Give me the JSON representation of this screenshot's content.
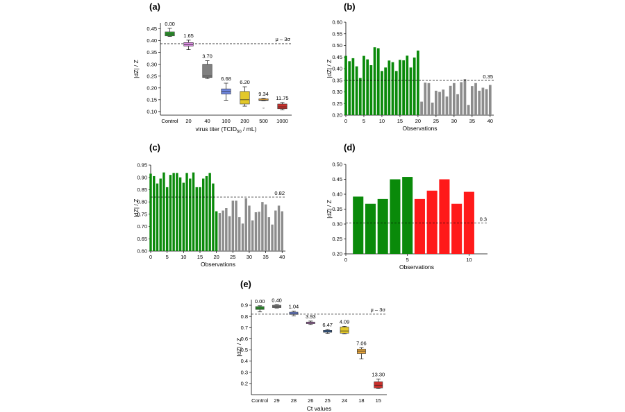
{
  "figure": {
    "panels": [
      "a",
      "b",
      "c",
      "d",
      "e"
    ]
  },
  "chart_data": [
    {
      "id": "a",
      "panel_label": "(a)",
      "type": "box",
      "xlabel": "virus titer (TCID50 / mL)",
      "xlabel_main": "virus titer (TCID",
      "xlabel_sub": "50",
      "xlabel_end": " / mL)",
      "ylabel": "|dZ| / Z",
      "ylim": [
        0.085,
        0.475
      ],
      "yticks": [
        "0.10",
        "0.15",
        "0.20",
        "0.25",
        "0.30",
        "0.35",
        "0.40",
        "0.45"
      ],
      "threshold": {
        "value": 0.387,
        "label": "μ – 3σ"
      },
      "categories": [
        "Control",
        "20",
        "40",
        "100",
        "200",
        "500",
        "1000"
      ],
      "labels": [
        "0.00",
        "1.65",
        "3.70",
        "6.68",
        "6.20",
        "9.34",
        "11.75"
      ],
      "colors": [
        "#2ca02c",
        "#d98ae0",
        "#808080",
        "#6f86e0",
        "#e3c829",
        "#e8a53b",
        "#c9302c"
      ],
      "boxes": [
        {
          "min": 0.418,
          "q1": 0.42,
          "med": 0.428,
          "q3": 0.437,
          "max": 0.452
        },
        {
          "min": 0.362,
          "q1": 0.377,
          "med": 0.383,
          "q3": 0.392,
          "max": 0.402
        },
        {
          "min": 0.24,
          "q1": 0.244,
          "med": 0.25,
          "q3": 0.3,
          "max": 0.315
        },
        {
          "min": 0.148,
          "q1": 0.174,
          "med": 0.185,
          "q3": 0.196,
          "max": 0.22
        },
        {
          "min": 0.123,
          "q1": 0.132,
          "med": 0.15,
          "q3": 0.185,
          "max": 0.205
        },
        {
          "min": 0.146,
          "q1": 0.147,
          "med": 0.149,
          "q3": 0.154,
          "max": 0.156,
          "outlier": 0.115
        },
        {
          "min": 0.108,
          "q1": 0.112,
          "med": 0.12,
          "q3": 0.132,
          "max": 0.138
        }
      ]
    },
    {
      "id": "b",
      "panel_label": "(b)",
      "type": "bar",
      "xlabel": "Observations",
      "ylabel": "|dZ| / Z",
      "ylim": [
        0.2,
        0.6
      ],
      "yticks": [
        "0.20",
        "0.25",
        "0.30",
        "0.35",
        "0.40",
        "0.45",
        "0.50",
        "0.55",
        "0.60"
      ],
      "xlim": [
        0,
        41
      ],
      "xticks": [
        "0",
        "5",
        "10",
        "15",
        "20",
        "25",
        "30",
        "35",
        "40"
      ],
      "threshold": {
        "value": 0.35,
        "label": "0.35"
      },
      "colors": {
        "group1": "#0a8a0a",
        "group2": "#8c8c8c"
      },
      "split": 20,
      "values": [
        0.455,
        0.432,
        0.445,
        0.41,
        0.36,
        0.455,
        0.44,
        0.415,
        0.492,
        0.488,
        0.39,
        0.405,
        0.435,
        0.428,
        0.39,
        0.438,
        0.436,
        0.456,
        0.405,
        0.448,
        0.478,
        0.258,
        0.34,
        0.338,
        0.254,
        0.305,
        0.3,
        0.31,
        0.28,
        0.326,
        0.338,
        0.29,
        0.342,
        0.355,
        0.244,
        0.325,
        0.338,
        0.305,
        0.318,
        0.312,
        0.33
      ]
    },
    {
      "id": "c",
      "panel_label": "(c)",
      "type": "bar",
      "xlabel": "Observations",
      "ylabel": "|dZ| / Z",
      "ylim": [
        0.6,
        0.95
      ],
      "yticks": [
        "0.60",
        "0.65",
        "0.70",
        "0.75",
        "0.80",
        "0.85",
        "0.90",
        "0.95"
      ],
      "xlim": [
        0,
        41
      ],
      "xticks": [
        "0",
        "5",
        "10",
        "15",
        "20",
        "25",
        "30",
        "35",
        "40"
      ],
      "threshold": {
        "value": 0.82,
        "label": "0.82"
      },
      "colors": {
        "group1": "#0a8a0a",
        "group2": "#8c8c8c"
      },
      "split": 20,
      "values": [
        0.915,
        0.905,
        0.875,
        0.895,
        0.92,
        0.86,
        0.91,
        0.918,
        0.918,
        0.9,
        0.878,
        0.918,
        0.895,
        0.92,
        0.86,
        0.86,
        0.895,
        0.905,
        0.918,
        0.875,
        0.762,
        0.755,
        0.765,
        0.775,
        0.742,
        0.805,
        0.805,
        0.738,
        0.712,
        0.815,
        0.785,
        0.725,
        0.758,
        0.76,
        0.8,
        0.79,
        0.738,
        0.708,
        0.765,
        0.785,
        0.762
      ]
    },
    {
      "id": "d",
      "panel_label": "(d)",
      "type": "bar",
      "xlabel": "Observations",
      "ylabel": "|dZ| / Z",
      "ylim": [
        0.2,
        0.5
      ],
      "yticks": [
        "0.20",
        "0.25",
        "0.30",
        "0.35",
        "0.40",
        "0.45",
        "0.50"
      ],
      "xlim": [
        0,
        11.5
      ],
      "xticks": [
        "0",
        "5",
        "10"
      ],
      "xtick_values": [
        0,
        5,
        10
      ],
      "threshold": {
        "value": 0.303,
        "label": "0.3"
      },
      "colors": {
        "group1": "#0a8a0a",
        "group2": "#ff1a1a"
      },
      "split": 6,
      "start": 1,
      "values": [
        0.392,
        0.368,
        0.384,
        0.45,
        0.458,
        0.384,
        0.412,
        0.45,
        0.368,
        0.408
      ]
    },
    {
      "id": "e",
      "panel_label": "(e)",
      "type": "box",
      "xlabel": "Ct values",
      "ylabel": "|dZ| / Z",
      "ylim": [
        0.1,
        0.95
      ],
      "yticks": [
        "0.2",
        "0.3",
        "0.4",
        "0.5",
        "0.6",
        "0.7",
        "0.8",
        "0.9"
      ],
      "threshold": {
        "value": 0.82,
        "label": "μ – 3σ"
      },
      "categories": [
        "Control",
        "29",
        "28",
        "26",
        "25",
        "24",
        "18",
        "15"
      ],
      "labels": [
        "0.00",
        "0.40",
        "1.04",
        "3.93",
        "6.47",
        "4.09",
        "7.06",
        "13.30"
      ],
      "colors": [
        "#2ca02c",
        "#8c8c8c",
        "#6f86e0",
        "#d98ae0",
        "#3a6fb5",
        "#e3c829",
        "#e8a53b",
        "#c9302c"
      ],
      "boxes": [
        {
          "min": 0.84,
          "q1": 0.862,
          "med": 0.875,
          "q3": 0.888,
          "max": 0.895
        },
        {
          "min": 0.875,
          "q1": 0.878,
          "med": 0.89,
          "q3": 0.9,
          "max": 0.905
        },
        {
          "min": 0.805,
          "q1": 0.818,
          "med": 0.828,
          "q3": 0.838,
          "max": 0.848
        },
        {
          "min": 0.728,
          "q1": 0.735,
          "med": 0.742,
          "q3": 0.75,
          "max": 0.758
        },
        {
          "min": 0.648,
          "q1": 0.658,
          "med": 0.665,
          "q3": 0.675,
          "max": 0.682
        },
        {
          "min": 0.645,
          "q1": 0.65,
          "med": 0.67,
          "q3": 0.705,
          "max": 0.712
        },
        {
          "min": 0.42,
          "q1": 0.468,
          "med": 0.49,
          "q3": 0.508,
          "max": 0.52
        },
        {
          "min": 0.155,
          "q1": 0.16,
          "med": 0.185,
          "q3": 0.215,
          "max": 0.24
        }
      ]
    }
  ]
}
